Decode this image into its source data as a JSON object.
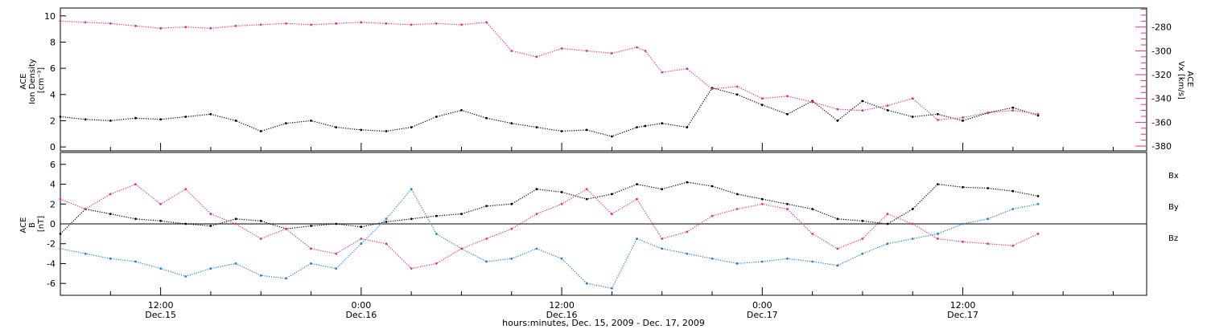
{
  "chart_data": [
    {
      "type": "scatter",
      "panel": "top",
      "ylabel": "ACE\nIon Density\n[cm⁻³]",
      "y2label": "ACE\nVx [km/s]",
      "ylim": [
        -0.3,
        10.6
      ],
      "y2lim": [
        -384,
        -264
      ],
      "yticks": [
        0,
        2,
        4,
        6,
        8,
        10
      ],
      "y2ticks": [
        -380,
        -360,
        -340,
        -320,
        -300,
        -280
      ],
      "x_range_hours": [
        0,
        65
      ],
      "series": [
        {
          "label": "Ion Density",
          "axis": "left",
          "color": "#000000",
          "x": [
            0,
            1.5,
            3,
            4.5,
            6,
            7.5,
            9,
            10.5,
            12,
            13.5,
            15,
            16.5,
            18,
            19.5,
            21,
            22.5,
            24,
            25.5,
            27,
            28.5,
            30,
            31.5,
            33,
            34.5,
            35,
            36,
            37.5,
            39,
            40.5,
            42,
            43.5,
            45,
            46.5,
            48,
            49.5,
            51,
            52.5,
            54,
            55.5,
            57,
            58.5
          ],
          "y": [
            2.3,
            2.1,
            2.0,
            2.2,
            2.1,
            2.3,
            2.5,
            2.0,
            1.2,
            1.8,
            2.0,
            1.5,
            1.3,
            1.2,
            1.5,
            2.3,
            2.8,
            2.2,
            1.8,
            1.5,
            1.2,
            1.3,
            0.8,
            1.5,
            1.6,
            1.8,
            1.5,
            4.5,
            4.0,
            3.2,
            2.5,
            3.5,
            2.0,
            3.5,
            2.8,
            2.3,
            2.5,
            2.0,
            2.6,
            3.0,
            2.4
          ]
        },
        {
          "label": "Vx",
          "axis": "right",
          "color": "#e8336a",
          "x": [
            0,
            1.5,
            3,
            4.5,
            6,
            7.5,
            9,
            10.5,
            12,
            13.5,
            15,
            16.5,
            18,
            19.5,
            21,
            22.5,
            24,
            25.5,
            27,
            28.5,
            30,
            31.5,
            33,
            34.5,
            35,
            36,
            37.5,
            39,
            40.5,
            42,
            43.5,
            45,
            46.5,
            48,
            49.5,
            51,
            52.5,
            54,
            55.5,
            57,
            58.5
          ],
          "y": [
            -275,
            -276,
            -277,
            -279,
            -281,
            -280,
            -281,
            -279,
            -278,
            -277,
            -278,
            -277,
            -276,
            -277,
            -278,
            -277,
            -278,
            -276,
            -300,
            -305,
            -298,
            -300,
            -302,
            -297,
            -300,
            -318,
            -315,
            -332,
            -330,
            -340,
            -338,
            -343,
            -349,
            -350,
            -346,
            -340,
            -358,
            -356,
            -352,
            -350,
            -353
          ]
        }
      ]
    },
    {
      "type": "scatter",
      "panel": "bottom",
      "ylabel": "ACE\nB\n[nT]",
      "ylim": [
        -7.2,
        7.2
      ],
      "yticks": [
        -6,
        -4,
        -2,
        0,
        2,
        4,
        6
      ],
      "x_range_hours": [
        0,
        65
      ],
      "legend_entries": [
        "Bx",
        "By",
        "Bz"
      ],
      "series": [
        {
          "label": "Bx",
          "color": "#000000",
          "x": [
            0,
            1.5,
            3,
            4.5,
            6,
            7.5,
            9,
            10.5,
            12,
            13.5,
            15,
            16.5,
            18,
            19.5,
            21,
            22.5,
            24,
            25.5,
            27,
            28.5,
            30,
            31.5,
            33,
            34.5,
            36,
            37.5,
            39,
            40.5,
            42,
            43.5,
            45,
            46.5,
            48,
            49.5,
            51,
            52.5,
            54,
            55.5,
            57,
            58.5
          ],
          "y": [
            -1.0,
            1.5,
            1.0,
            0.5,
            0.3,
            0.0,
            -0.2,
            0.5,
            0.3,
            -0.5,
            -0.2,
            0.0,
            -0.3,
            0.2,
            0.5,
            0.8,
            1.0,
            1.8,
            2.0,
            3.5,
            3.2,
            2.5,
            3.0,
            4.0,
            3.5,
            4.2,
            3.8,
            3.0,
            2.5,
            2.0,
            1.5,
            0.5,
            0.3,
            0.0,
            1.5,
            4.0,
            3.7,
            3.6,
            3.3,
            2.8
          ]
        },
        {
          "label": "By",
          "color": "#1e82d2",
          "x": [
            0,
            1.5,
            3,
            4.5,
            6,
            7.5,
            9,
            10.5,
            12,
            13.5,
            15,
            16.5,
            18,
            19.5,
            21,
            22.5,
            24,
            25.5,
            27,
            28.5,
            30,
            31.5,
            33,
            34.5,
            36,
            37.5,
            39,
            40.5,
            42,
            43.5,
            45,
            46.5,
            48,
            49.5,
            51,
            52.5,
            54,
            55.5,
            57,
            58.5
          ],
          "y": [
            -2.5,
            -3.0,
            -3.5,
            -3.8,
            -4.5,
            -5.3,
            -4.5,
            -4.0,
            -5.2,
            -5.5,
            -4.0,
            -4.5,
            -2.0,
            0.5,
            3.5,
            -1.0,
            -2.5,
            -3.8,
            -3.5,
            -2.5,
            -3.5,
            -6.0,
            -6.5,
            -1.5,
            -2.5,
            -3.0,
            -3.5,
            -4.0,
            -3.8,
            -3.5,
            -3.8,
            -4.2,
            -3.0,
            -2.0,
            -1.5,
            -1.0,
            0.0,
            0.5,
            1.5,
            2.0
          ]
        },
        {
          "label": "Bz",
          "color": "#e8336a",
          "x": [
            0,
            1.5,
            3,
            4.5,
            6,
            7.5,
            9,
            10.5,
            12,
            13.5,
            15,
            16.5,
            18,
            19.5,
            21,
            22.5,
            24,
            25.5,
            27,
            28.5,
            30,
            31.5,
            33,
            34.5,
            36,
            37.5,
            39,
            40.5,
            42,
            43.5,
            45,
            46.5,
            48,
            49.5,
            51,
            52.5,
            54,
            55.5,
            57,
            58.5
          ],
          "y": [
            2.5,
            1.5,
            3.0,
            4.0,
            2.0,
            3.5,
            1.0,
            0.0,
            -1.5,
            -0.5,
            -2.5,
            -3.0,
            -1.5,
            -2.0,
            -4.5,
            -4.0,
            -2.5,
            -1.5,
            -0.5,
            1.0,
            2.0,
            3.5,
            1.0,
            2.5,
            -1.5,
            -0.8,
            0.8,
            1.5,
            2.0,
            1.5,
            -1.0,
            -2.5,
            -1.5,
            1.0,
            0.0,
            -1.5,
            -1.8,
            -2.0,
            -2.2,
            -1.0
          ]
        }
      ]
    }
  ],
  "x_axis": {
    "title": "hours:minutes, Dec. 15, 2009 - Dec. 17, 2009",
    "ticks": [
      {
        "hour": 6,
        "time": "12:00",
        "date": "Dec.15"
      },
      {
        "hour": 18,
        "time": "0:00",
        "date": "Dec.16"
      },
      {
        "hour": 30,
        "time": "12:00",
        "date": "Dec.16"
      },
      {
        "hour": 42,
        "time": "0:00",
        "date": "Dec.17"
      },
      {
        "hour": 54,
        "time": "12:00",
        "date": "Dec.17"
      }
    ]
  }
}
